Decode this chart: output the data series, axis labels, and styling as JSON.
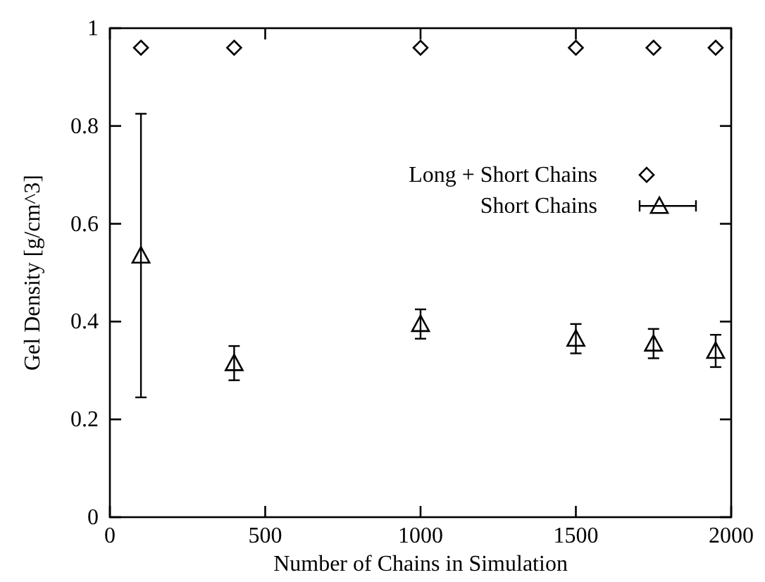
{
  "chart_data": {
    "type": "scatter",
    "xlabel": "Number of Chains in Simulation",
    "ylabel": "Gel Density  [g/cm^3]",
    "xlim": [
      0,
      2000
    ],
    "xticks": [
      0,
      500,
      1000,
      1500,
      2000
    ],
    "ylim": [
      0,
      1
    ],
    "yticks": [
      0,
      0.2,
      0.4,
      0.6,
      0.8,
      1
    ],
    "legend": "right",
    "grid": false,
    "series": [
      {
        "name": "Long + Short Chains",
        "color": "#000000",
        "marker": "diamond",
        "x": [
          100,
          400,
          1000,
          1500,
          1750,
          1950
        ],
        "values": [
          0.96,
          0.96,
          0.96,
          0.96,
          0.96,
          0.96
        ]
      },
      {
        "name": "Short Chains",
        "color": "#000000",
        "marker": "triangle",
        "x": [
          100,
          400,
          1000,
          1500,
          1750,
          1950
        ],
        "values": [
          0.535,
          0.315,
          0.395,
          0.365,
          0.355,
          0.34
        ],
        "errors": [
          0.29,
          0.035,
          0.03,
          0.03,
          0.03,
          0.033
        ]
      }
    ]
  }
}
